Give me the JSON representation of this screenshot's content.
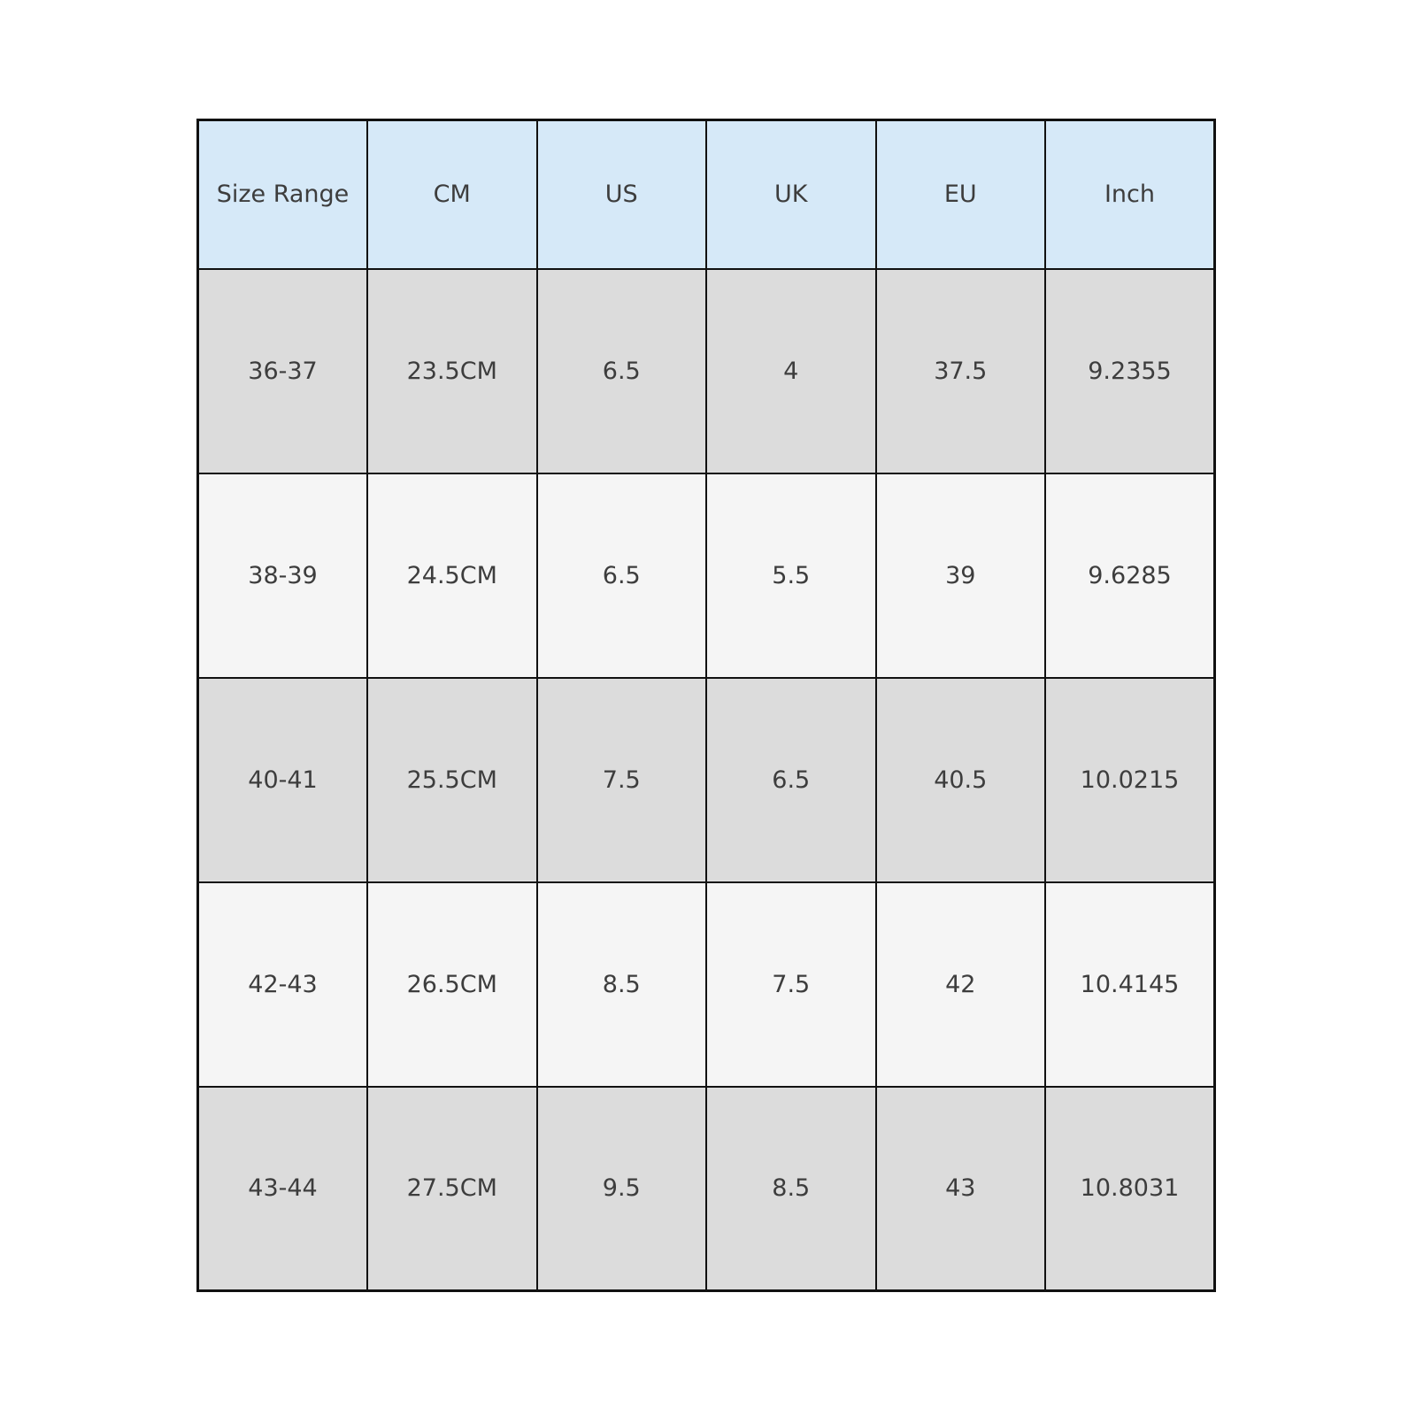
{
  "colors": {
    "header_bg": "#d6e9f8",
    "row_odd_bg": "#dcdcdc",
    "row_even_bg": "#f5f5f5",
    "border": "#111111",
    "text": "#3d3d3d",
    "page_bg": "#ffffff"
  },
  "table": {
    "columns": [
      "Size Range",
      "CM",
      "US",
      "UK",
      "EU",
      "Inch"
    ],
    "rows": [
      {
        "cells": [
          "36-37",
          "23.5CM",
          "6.5",
          "4",
          "37.5",
          "9.2355"
        ]
      },
      {
        "cells": [
          "38-39",
          "24.5CM",
          "6.5",
          "5.5",
          "39",
          "9.6285"
        ]
      },
      {
        "cells": [
          "40-41",
          "25.5CM",
          "7.5",
          "6.5",
          "40.5",
          "10.0215"
        ]
      },
      {
        "cells": [
          "42-43",
          "26.5CM",
          "8.5",
          "7.5",
          "42",
          "10.4145"
        ]
      },
      {
        "cells": [
          "43-44",
          "27.5CM",
          "9.5",
          "8.5",
          "43",
          "10.8031"
        ]
      }
    ]
  },
  "chart_data": {
    "type": "table",
    "title": "",
    "columns": [
      "Size Range",
      "CM",
      "US",
      "UK",
      "EU",
      "Inch"
    ],
    "rows": [
      [
        "36-37",
        "23.5CM",
        "6.5",
        "4",
        "37.5",
        "9.2355"
      ],
      [
        "38-39",
        "24.5CM",
        "6.5",
        "5.5",
        "39",
        "9.6285"
      ],
      [
        "40-41",
        "25.5CM",
        "7.5",
        "6.5",
        "40.5",
        "10.0215"
      ],
      [
        "42-43",
        "26.5CM",
        "8.5",
        "7.5",
        "42",
        "10.4145"
      ],
      [
        "43-44",
        "27.5CM",
        "9.5",
        "8.5",
        "43",
        "10.8031"
      ]
    ],
    "layout": {
      "header_fill": "#d6e9f8",
      "alternating_row_fills": [
        "#dcdcdc",
        "#f5f5f5"
      ],
      "grid": true,
      "legend_position": "none"
    }
  }
}
